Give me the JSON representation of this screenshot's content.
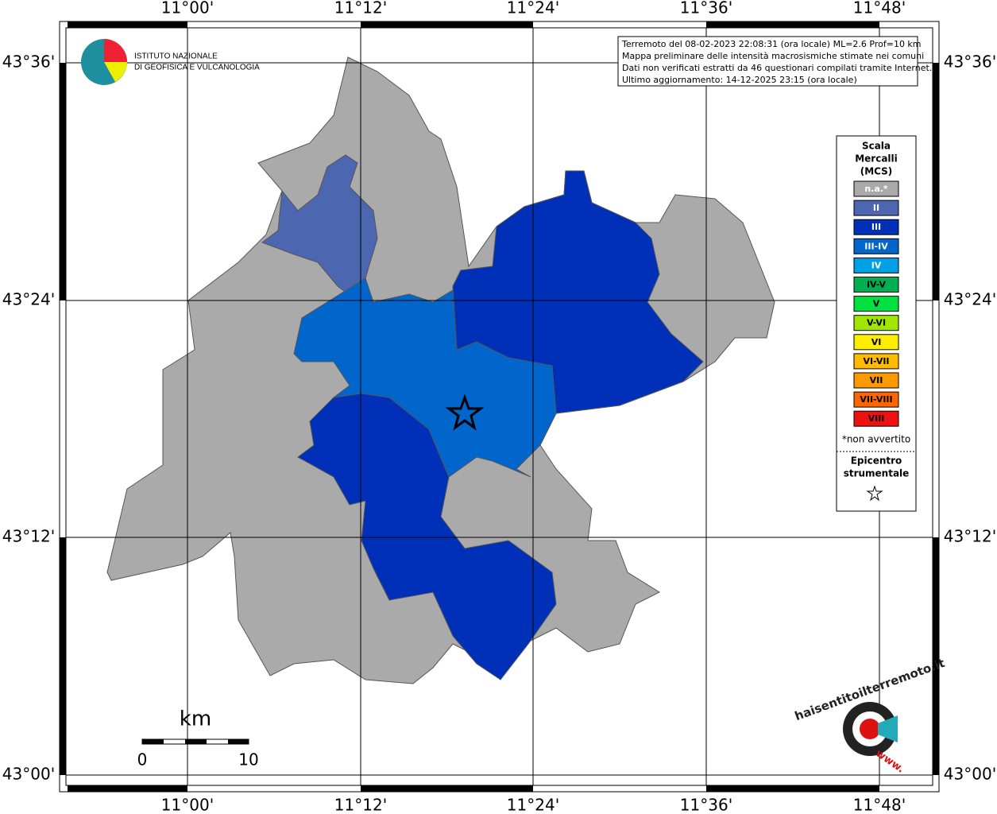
{
  "logo": {
    "line1": "ISTITUTO NAZIONALE",
    "line2": "DI GEOFISICA E VULCANOLOGIA"
  },
  "info": [
    "Terremoto del 08-02-2023 22:08:31 (ora locale) ML=2.6 Prof=10 km",
    "Mappa preliminare delle intensità macrosismiche stimate nei comuni",
    "Dati non verificati estratti da 46 questionari compilati tramite Internet.",
    "Ultimo aggiornamento: 14-12-2025 23:15 (ora locale)"
  ],
  "axes": {
    "longitudes": [
      "11°00'",
      "11°12'",
      "11°24'",
      "11°36'",
      "11°48'"
    ],
    "latitudes": [
      "43°36'",
      "43°24'",
      "43°12'",
      "43°00'"
    ]
  },
  "legend": {
    "title": [
      "Scala",
      "Mercalli",
      "(MCS)"
    ],
    "items": [
      "n.a.*",
      "II",
      "III",
      "III-IV",
      "IV",
      "IV-V",
      "V",
      "V-VI",
      "VI",
      "VI-VII",
      "VII",
      "VII-VIII",
      "VIII"
    ],
    "note": "*non avvertito",
    "epicenter": [
      "Epicentro",
      "strumentale"
    ]
  },
  "scale": {
    "unit": "km",
    "labels": [
      "0",
      "10"
    ]
  },
  "badge": {
    "site": "haisentitoilterremoto.it",
    "prefix": "www."
  }
}
